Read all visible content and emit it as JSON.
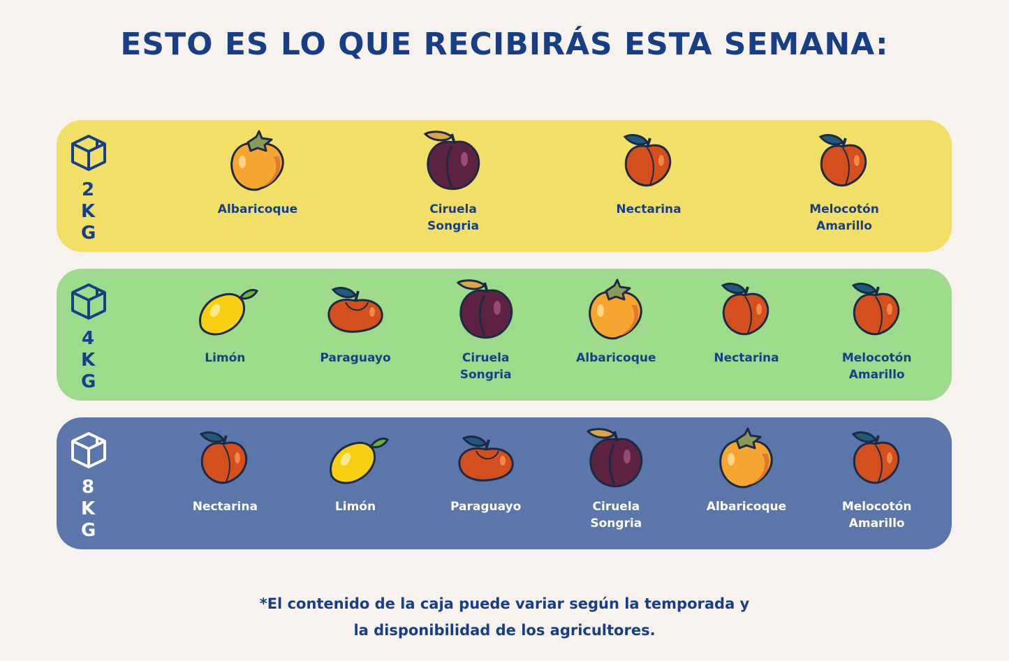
{
  "header": {
    "title": "ESTO ES LO QUE RECIBIRÁS ESTA SEMANA:"
  },
  "boxes": [
    {
      "size": "2KG",
      "items": [
        "Albaricoque",
        "Ciruela Songria",
        "Nectarina",
        "Melocotón Amarillo"
      ]
    },
    {
      "size": "4KG",
      "items": [
        "Limón",
        "Paraguayo",
        "Ciruela Songria",
        "Albaricoque",
        "Nectarina",
        "Melocotón Amarillo"
      ]
    },
    {
      "size": "8KG",
      "items": [
        "Nectarina",
        "Limón",
        "Paraguayo",
        "Ciruela Songria",
        "Albaricoque",
        "Melocotón Amarillo"
      ]
    }
  ],
  "footer": {
    "lines": [
      "*El contenido de la caja puede variar según la temporada y",
      "la disponibilidad de los agricultores."
    ]
  }
}
